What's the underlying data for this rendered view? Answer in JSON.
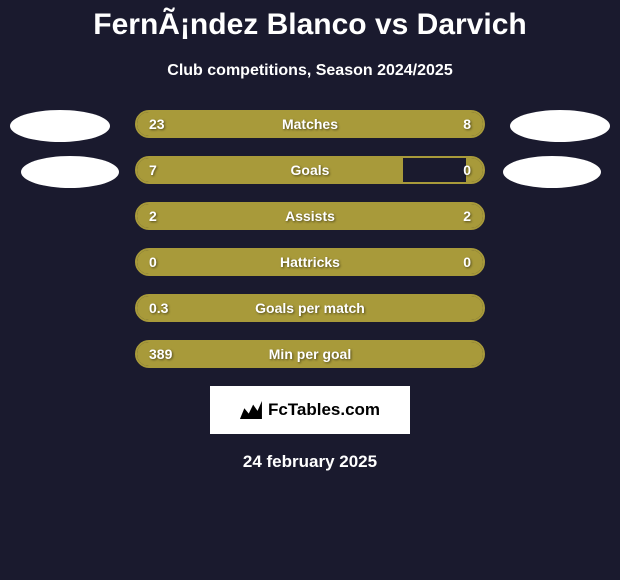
{
  "title": "FernÃ¡ndez Blanco vs Darvich",
  "subtitle": "Club competitions, Season 2024/2025",
  "date": "24 february 2025",
  "logo_text": "FcTables.com",
  "colors": {
    "background": "#1a1a2e",
    "bar_fill": "#a89a3a",
    "bar_border": "#a89a3a",
    "text": "#ffffff",
    "avatar": "#ffffff",
    "logo_bg": "#ffffff",
    "logo_text": "#000000"
  },
  "stats": [
    {
      "label": "Matches",
      "left_value": "23",
      "right_value": "8",
      "left_pct": 70,
      "right_pct": 30
    },
    {
      "label": "Goals",
      "left_value": "7",
      "right_value": "0",
      "left_pct": 77,
      "right_pct": 5
    },
    {
      "label": "Assists",
      "left_value": "2",
      "right_value": "2",
      "left_pct": 50,
      "right_pct": 50
    },
    {
      "label": "Hattricks",
      "left_value": "0",
      "right_value": "0",
      "left_pct": 50,
      "right_pct": 50
    },
    {
      "label": "Goals per match",
      "left_value": "0.3",
      "right_value": "",
      "left_pct": 100,
      "right_pct": 0
    },
    {
      "label": "Min per goal",
      "left_value": "389",
      "right_value": "",
      "left_pct": 100,
      "right_pct": 0
    }
  ]
}
